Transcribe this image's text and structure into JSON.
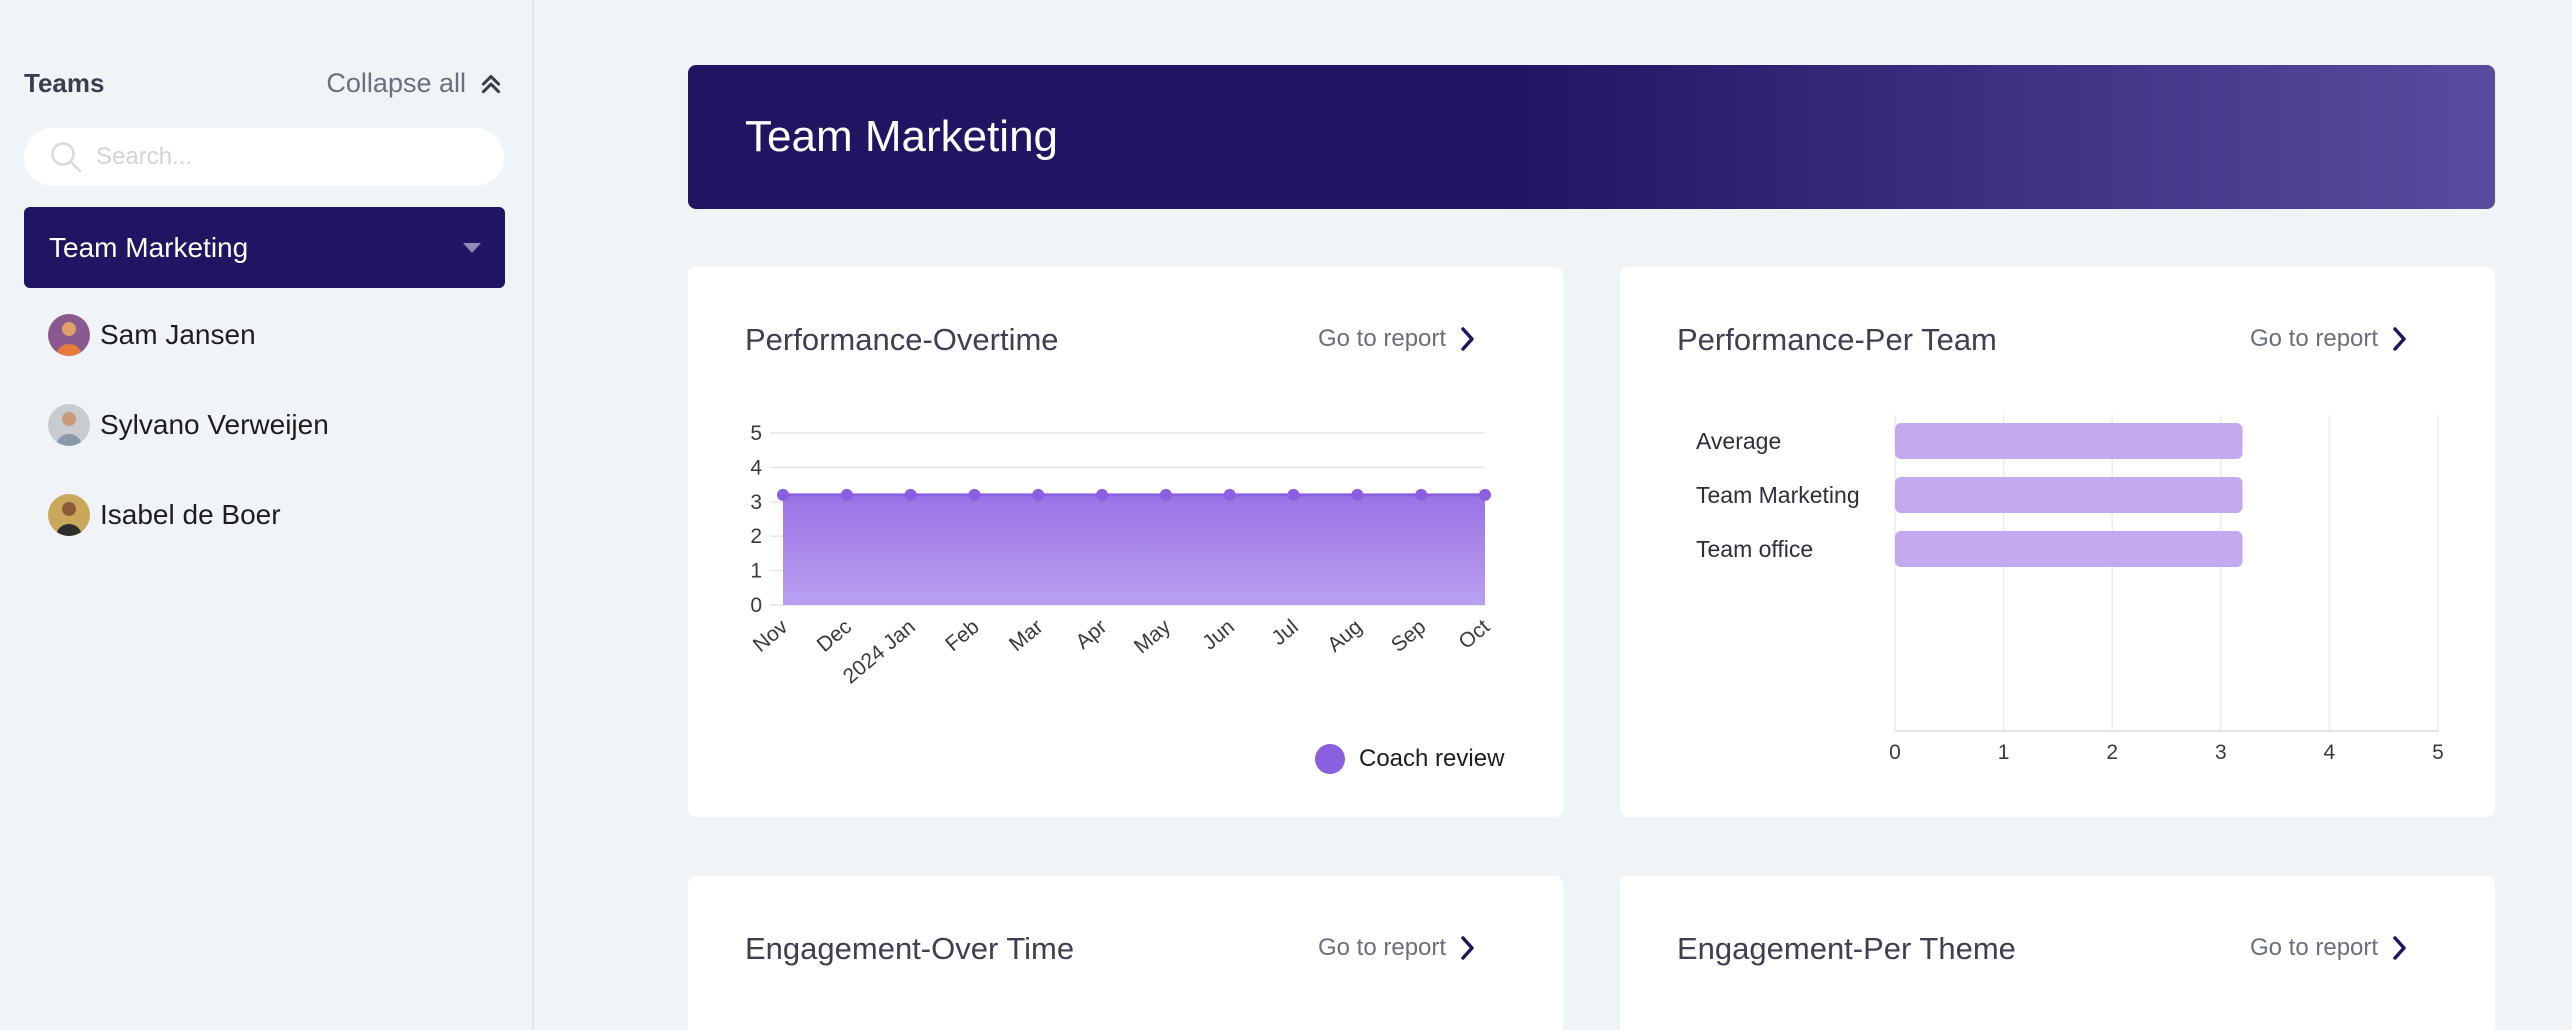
{
  "sidebar": {
    "title": "Teams",
    "collapse_label": "Collapse all",
    "search_placeholder": "Search...",
    "selected_team": "Team Marketing",
    "members": [
      {
        "name": "Sam Jansen"
      },
      {
        "name": "Sylvano Verweijen"
      },
      {
        "name": "Isabel de Boer"
      }
    ]
  },
  "banner": {
    "title": "Team Marketing"
  },
  "cards": {
    "perf_overtime": {
      "title": "Performance-Overtime",
      "link": "Go to report",
      "legend": "Coach review"
    },
    "perf_team": {
      "title": "Performance-Per Team",
      "link": "Go to report"
    },
    "eng_overtime": {
      "title": "Engagement-Over Time",
      "link": "Go to report"
    },
    "eng_theme": {
      "title": "Engagement-Per Theme",
      "link": "Go to report"
    }
  },
  "colors": {
    "primary": "#1f1563",
    "series": "#8a5fe0",
    "bar": "#c3aaf0"
  },
  "chart_data": [
    {
      "type": "area",
      "title": "Performance-Overtime",
      "x": [
        "Nov",
        "Dec",
        "2024 Jan",
        "Feb",
        "Mar",
        "Apr",
        "May",
        "Jun",
        "Jul",
        "Aug",
        "Sep",
        "Oct"
      ],
      "series": [
        {
          "name": "Coach review",
          "values": [
            3.2,
            3.2,
            3.2,
            3.2,
            3.2,
            3.2,
            3.2,
            3.2,
            3.2,
            3.2,
            3.2,
            3.2
          ]
        }
      ],
      "ylim": [
        0,
        5
      ],
      "yticks": [
        "0",
        "1",
        "2",
        "3",
        "4",
        "5"
      ],
      "grid": true,
      "legend": "bottom-right"
    },
    {
      "type": "bar",
      "orientation": "horizontal",
      "title": "Performance-Per Team",
      "categories": [
        "Average",
        "Team Marketing",
        "Team office"
      ],
      "values": [
        3.2,
        3.2,
        3.2
      ],
      "xlim": [
        0,
        5
      ],
      "xticks": [
        "0",
        "1",
        "2",
        "3",
        "4",
        "5"
      ],
      "grid": true
    }
  ]
}
